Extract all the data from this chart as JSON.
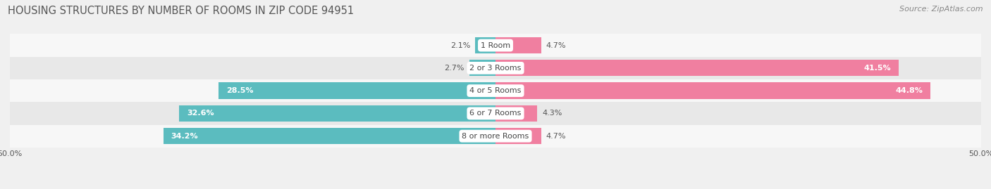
{
  "title": "HOUSING STRUCTURES BY NUMBER OF ROOMS IN ZIP CODE 94951",
  "source": "Source: ZipAtlas.com",
  "categories": [
    "1 Room",
    "2 or 3 Rooms",
    "4 or 5 Rooms",
    "6 or 7 Rooms",
    "8 or more Rooms"
  ],
  "owner_values": [
    2.1,
    2.7,
    28.5,
    32.6,
    34.2
  ],
  "renter_values": [
    4.7,
    41.5,
    44.8,
    4.3,
    4.7
  ],
  "owner_color": "#5bbcbf",
  "renter_color": "#f07fa0",
  "xlim": 50.0,
  "bar_height": 0.72,
  "background_color": "#f0f0f0",
  "row_colors": [
    "#f7f7f7",
    "#e8e8e8"
  ],
  "title_fontsize": 10.5,
  "source_fontsize": 8,
  "label_fontsize": 8,
  "tick_fontsize": 8,
  "legend_fontsize": 8.5
}
